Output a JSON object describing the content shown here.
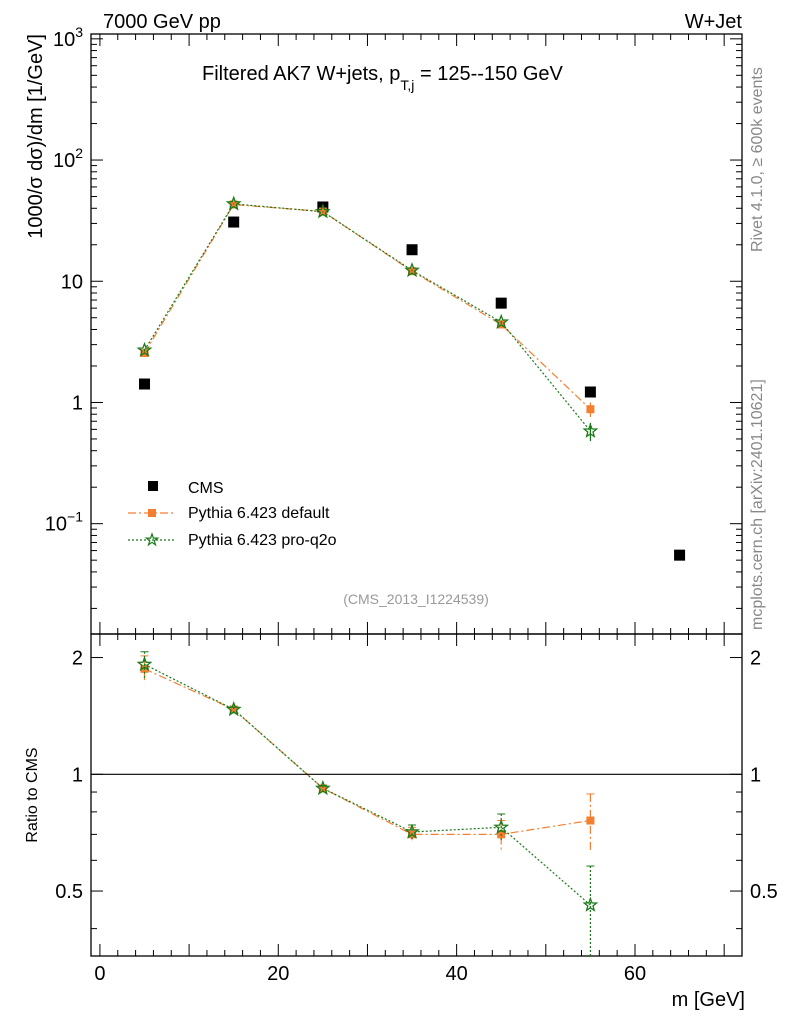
{
  "header": {
    "left": "7000 GeV pp",
    "right": "W+Jet"
  },
  "side_text": {
    "rivet": "Rivet 4.1.0, ≥ 600k events",
    "mcplots": "mcplots.cern.ch [arXiv:2401.10621]"
  },
  "chart_data": [
    {
      "type": "scatter",
      "panel": "main",
      "title_main": "Filtered AK7 W+jets, p",
      "title_sub": "T,j",
      "title_rest": " = 125--150 GeV",
      "ylabel": "1000/σ  dσ)/dm [1/GeV]",
      "xlabel": "m [GeV]",
      "yscale": "log",
      "xlim": [
        -1,
        72
      ],
      "ylim": [
        0.0123,
        1096
      ],
      "y_ticks": [
        {
          "value": 1000,
          "base": "10",
          "exp": "3"
        },
        {
          "value": 100,
          "base": "10",
          "exp": "2"
        },
        {
          "value": 10,
          "base": "10",
          "exp": ""
        },
        {
          "value": 1,
          "base": "1",
          "exp": ""
        },
        {
          "value": 0.1,
          "base": "10",
          "exp": "−1"
        }
      ],
      "watermark": "(CMS_2013_I1224539)",
      "legend": [
        "CMS",
        "Pythia 6.423 default",
        "Pythia 6.423 pro-q2o"
      ],
      "series": [
        {
          "name": "CMS",
          "color": "#000000",
          "marker": "square",
          "x": [
            5,
            15,
            25,
            35,
            45,
            55,
            65
          ],
          "y": [
            1.42,
            30.8,
            41.0,
            18.2,
            6.6,
            1.22,
            0.055
          ]
        },
        {
          "name": "Pythia 6.423 default",
          "color": "#f57f31",
          "marker": "square",
          "line": "dashdot",
          "x": [
            5,
            15,
            25,
            35,
            45,
            55
          ],
          "y": [
            2.56,
            43.0,
            37.6,
            12.1,
            4.4,
            0.88
          ],
          "err": [
            0.07,
            0.4,
            0.4,
            0.2,
            0.15,
            0.12
          ]
        },
        {
          "name": "Pythia 6.423 pro-q2o",
          "color": "#1a7a1a",
          "marker": "star",
          "line": "dotted",
          "x": [
            5,
            15,
            25,
            35,
            45,
            55
          ],
          "y": [
            2.7,
            43.5,
            37.5,
            12.3,
            4.6,
            0.58
          ],
          "err": [
            0.07,
            0.4,
            0.4,
            0.2,
            0.15,
            0.1
          ]
        }
      ]
    },
    {
      "type": "scatter",
      "panel": "ratio",
      "ylabel": "Ratio to CMS",
      "xlabel": "m [GeV]",
      "xlim": [
        -1,
        72
      ],
      "ylim": [
        0.34,
        2.3
      ],
      "x_ticks": [
        0,
        20,
        40,
        60
      ],
      "y_ticks": [
        2,
        1,
        0.5
      ],
      "reference": 1,
      "series": [
        {
          "name": "Pythia 6.423 default",
          "color": "#f57f31",
          "marker": "square",
          "line": "dashdot",
          "x": [
            5,
            15,
            25,
            35,
            45,
            55
          ],
          "y": [
            1.87,
            1.47,
            0.92,
            0.7,
            0.7,
            0.76
          ],
          "err": [
            0.15,
            0.02,
            0.015,
            0.03,
            0.06,
            0.13
          ]
        },
        {
          "name": "Pythia 6.423 pro-q2o",
          "color": "#1a7a1a",
          "marker": "star",
          "line": "dotted",
          "x": [
            5,
            15,
            25,
            35,
            45,
            55
          ],
          "y": [
            1.92,
            1.47,
            0.92,
            0.71,
            0.73,
            0.46
          ],
          "err": [
            0.15,
            0.02,
            0.015,
            0.03,
            0.06,
            0.12
          ]
        }
      ]
    }
  ]
}
